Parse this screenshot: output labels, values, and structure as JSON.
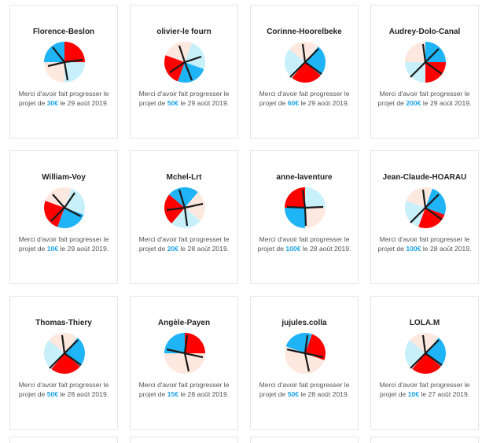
{
  "message_prefix": "Merci d'avoir fait progresser le projet de",
  "message_connector": "le",
  "colors": {
    "red": "#ff0000",
    "blue": "#1eb4f5",
    "light_blue": "#c8f0fa",
    "cream": "#fde8df",
    "stroke": "#1a1a1a",
    "amount": "#1aa3e8"
  },
  "cards": [
    {
      "name": "Florence-Beslon",
      "amount": "30€",
      "date": "29 août 2019.",
      "avatar": {
        "segments": [
          "red",
          "light_blue",
          "cream",
          "blue"
        ]
      }
    },
    {
      "name": "olivier-le fourn",
      "amount": "50€",
      "date": "29 août 2019.",
      "avatar": {
        "segments": [
          "light_blue",
          "blue",
          "red",
          "cream"
        ]
      }
    },
    {
      "name": "Corinne-Hoorelbeke",
      "amount": "60€",
      "date": "29 août 2019.",
      "avatar": {
        "segments": [
          "blue",
          "red",
          "light_blue",
          "cream"
        ]
      }
    },
    {
      "name": "Audrey-Dolo-Canal",
      "amount": "200€",
      "date": "29 août 2019.",
      "avatar": {
        "segments": [
          "blue",
          "red",
          "light_blue",
          "cream"
        ]
      }
    },
    {
      "name": "William-Voy",
      "amount": "10€",
      "date": "29 août 2019.",
      "avatar": {
        "segments": [
          "light_blue",
          "blue",
          "red",
          "cream"
        ]
      }
    },
    {
      "name": "Mchel-Lrt",
      "amount": "20€",
      "date": "28 août 2019.",
      "avatar": {
        "segments": [
          "cream",
          "light_blue",
          "red",
          "blue"
        ]
      }
    },
    {
      "name": "anne-laventure",
      "amount": "100€",
      "date": "28 août 2019.",
      "avatar": {
        "segments": [
          "light_blue",
          "cream",
          "blue",
          "red"
        ]
      }
    },
    {
      "name": "Jean-Claude-HOARAU",
      "amount": "100€",
      "date": "28 août 2019.",
      "avatar": {
        "segments": [
          "blue",
          "red",
          "light_blue",
          "cream"
        ]
      }
    },
    {
      "name": "Thomas-Thiery",
      "amount": "50€",
      "date": "28 août 2019.",
      "avatar": {
        "segments": [
          "blue",
          "red",
          "light_blue",
          "cream"
        ]
      }
    },
    {
      "name": "Angèle-Payen",
      "amount": "15€",
      "date": "28 août 2019.",
      "avatar": {
        "segments": [
          "red",
          "cream",
          "cream",
          "blue"
        ]
      }
    },
    {
      "name": "jujules.colla",
      "amount": "50€",
      "date": "28 août 2019.",
      "avatar": {
        "segments": [
          "red",
          "cream",
          "cream",
          "blue"
        ]
      }
    },
    {
      "name": "LOLA.M",
      "amount": "10€",
      "date": "27 août 2019.",
      "avatar": {
        "segments": [
          "blue",
          "red",
          "light_blue",
          "cream"
        ]
      }
    }
  ]
}
